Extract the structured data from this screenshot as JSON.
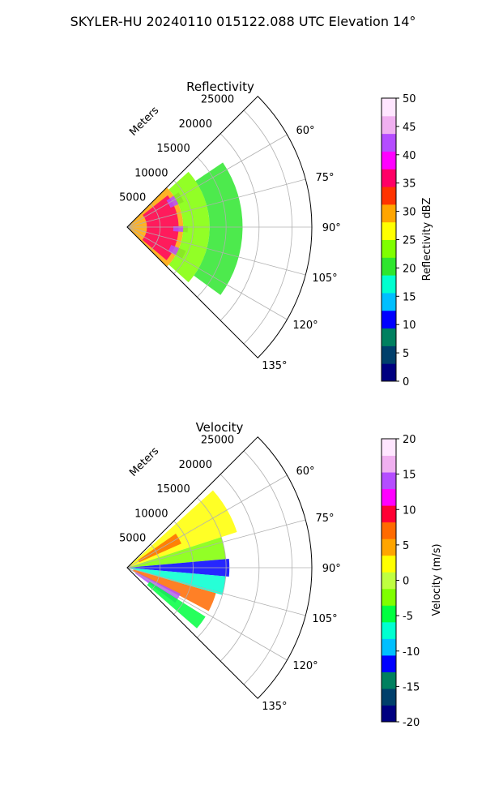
{
  "figure": {
    "title": "SKYLER-HU  20240110  015122.088 UTC Elevation 14°"
  },
  "chart_data": [
    {
      "type": "heatmap",
      "subtype": "polar-sector-ppi",
      "title": "Reflectivity",
      "radial_label": "Meters",
      "radial_ticks": [
        "5000",
        "10000",
        "15000",
        "20000",
        "25000"
      ],
      "radial_tick_values": [
        5000,
        10000,
        15000,
        20000,
        25000
      ],
      "rlim": [
        0,
        28000
      ],
      "angle_ticks": [
        "60°",
        "75°",
        "90°",
        "105°",
        "120°",
        "135°"
      ],
      "angle_tick_values": [
        60,
        75,
        90,
        105,
        120,
        135
      ],
      "theta_range_deg": [
        45,
        135
      ],
      "grid": true,
      "colorbar": {
        "label": "Reflectivity dBZ",
        "ticks": [
          "0",
          "5",
          "10",
          "15",
          "20",
          "25",
          "30",
          "35",
          "40",
          "45",
          "50"
        ],
        "range": [
          0,
          50
        ],
        "colors": [
          "#000080",
          "#003f6b",
          "#00805f",
          "#0000ff",
          "#00bfff",
          "#00ffd0",
          "#2ee62e",
          "#7fff00",
          "#ffff00",
          "#ffa500",
          "#ff3300",
          "#ff0066",
          "#ff00ff",
          "#b44dff",
          "#f0b0f0",
          "#ffe6ff"
        ]
      },
      "regions": [
        {
          "theta": [
            45,
            135
          ],
          "r": [
            0,
            8500
          ],
          "value": 31
        },
        {
          "theta": [
            52,
            130
          ],
          "r": [
            3000,
            7800
          ],
          "value": 35
        },
        {
          "theta": [
            56,
            66
          ],
          "r": [
            7200,
            9400
          ],
          "value": 41
        },
        {
          "theta": [
            89,
            95
          ],
          "r": [
            7000,
            9200
          ],
          "value": 42
        },
        {
          "theta": [
            112,
            120
          ],
          "r": [
            7200,
            9600
          ],
          "value": 43
        },
        {
          "theta": [
            48,
            132
          ],
          "r": [
            8500,
            12500
          ],
          "value": 22
        },
        {
          "theta": [
            56,
            126
          ],
          "r": [
            12500,
            17500
          ],
          "value": 19
        }
      ],
      "description_note": ""
    },
    {
      "type": "heatmap",
      "subtype": "polar-sector-ppi",
      "title": "Velocity",
      "radial_label": "Meters",
      "radial_ticks": [
        "5000",
        "10000",
        "15000",
        "20000",
        "25000"
      ],
      "radial_tick_values": [
        5000,
        10000,
        15000,
        20000,
        25000
      ],
      "rlim": [
        0,
        28000
      ],
      "angle_ticks": [
        "60°",
        "75°",
        "90°",
        "105°",
        "120°",
        "135°"
      ],
      "angle_tick_values": [
        60,
        75,
        90,
        105,
        120,
        135
      ],
      "theta_range_deg": [
        45,
        135
      ],
      "grid": true,
      "colorbar": {
        "label": "Velocity (m/s)",
        "ticks": [
          "-20",
          "-15",
          "-10",
          "-5",
          "0",
          "5",
          "10",
          "15",
          "20"
        ],
        "range": [
          -20,
          20
        ],
        "colors": [
          "#000080",
          "#003f6b",
          "#00805f",
          "#0000ff",
          "#00bfff",
          "#00ffd0",
          "#00ff40",
          "#7fff00",
          "#bfff40",
          "#ffff00",
          "#ffa500",
          "#ff6a00",
          "#ff0033",
          "#ff00ff",
          "#b44dff",
          "#f0b0f0",
          "#ffe6ff"
        ]
      },
      "regions": [
        {
          "theta": [
            48,
            72
          ],
          "r": [
            0,
            17500
          ],
          "value": 3
        },
        {
          "theta": [
            55,
            66
          ],
          "r": [
            2000,
            9000
          ],
          "value": 8
        },
        {
          "theta": [
            72,
            85
          ],
          "r": [
            0,
            15000
          ],
          "value": -3
        },
        {
          "theta": [
            85,
            95
          ],
          "r": [
            0,
            15500
          ],
          "value": -11
        },
        {
          "theta": [
            95,
            106
          ],
          "r": [
            0,
            15000
          ],
          "value": -6
        },
        {
          "theta": [
            106,
            118
          ],
          "r": [
            1000,
            14000
          ],
          "value": 6
        },
        {
          "theta": [
            116,
            126
          ],
          "r": [
            1500,
            9000
          ],
          "value": 14
        },
        {
          "theta": [
            122,
            131
          ],
          "r": [
            4000,
            14000
          ],
          "value": -4
        }
      ]
    }
  ]
}
